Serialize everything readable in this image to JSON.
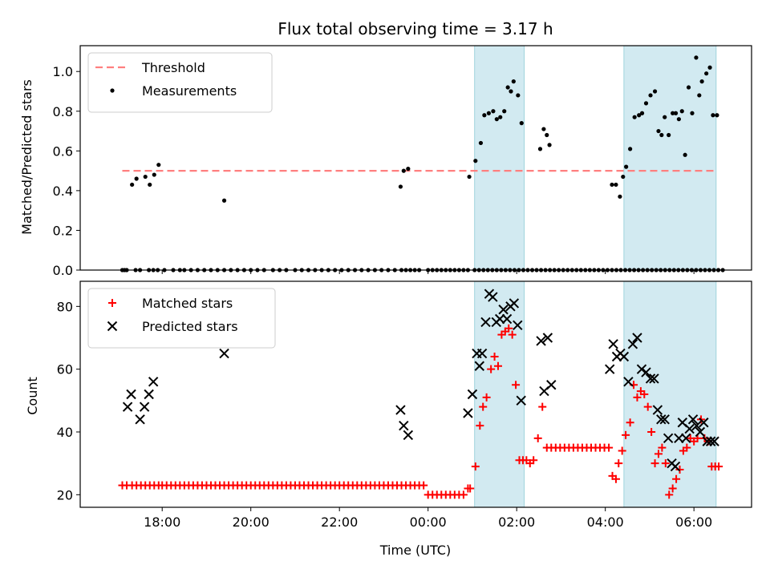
{
  "chart_data": [
    {
      "type": "scatter",
      "title": "Flux total observing time = 3.17 h",
      "xlabel": "",
      "ylabel": "Matched/Predicted stars",
      "x_axis": "time (hours relative to 00:00 UTC of day 2)",
      "xlim": [
        -7.85,
        7.3
      ],
      "ylim": [
        0.0,
        1.13
      ],
      "yticks": [
        "0.0",
        "0.2",
        "0.4",
        "0.6",
        "0.8",
        "1.0"
      ],
      "xtick_labels_shown": false,
      "legend_position": "top-left",
      "threshold": {
        "name": "Threshold",
        "value": 0.5,
        "x_range": [
          -6.9,
          6.5
        ],
        "color": "#ff7f7f",
        "style": "dashed"
      },
      "shaded_intervals": [
        [
          1.05,
          2.17
        ],
        [
          4.42,
          6.5
        ]
      ],
      "shade_color": "#add8e6",
      "series": [
        {
          "name": "Measurements",
          "marker": "dot",
          "color": "#000000",
          "x": [
            -6.9,
            -6.85,
            -6.8,
            -6.6,
            -6.5,
            -6.3,
            -6.2,
            -6.1,
            -5.95,
            -5.75,
            -5.6,
            -5.5,
            -5.35,
            -5.2,
            -5.05,
            -4.9,
            -4.75,
            -4.6,
            -4.45,
            -4.3,
            -4.15,
            -4.0,
            -3.85,
            -3.7,
            -3.5,
            -3.35,
            -3.2,
            -3.0,
            -2.85,
            -2.7,
            -2.55,
            -2.4,
            -2.25,
            -2.1,
            -1.95,
            -1.8,
            -1.65,
            -1.5,
            -1.35,
            -1.2,
            -1.05,
            -0.9,
            -0.75,
            -0.6,
            -0.5,
            -0.4,
            -0.3,
            -0.2,
            0.0,
            0.1,
            0.2,
            0.3,
            0.4,
            0.5,
            0.6,
            0.7,
            0.8,
            0.9,
            1.05,
            1.15,
            1.25,
            1.35,
            1.45,
            1.55,
            1.65,
            1.75,
            1.85,
            1.95,
            2.05,
            2.15,
            2.25,
            2.35,
            2.45,
            2.55,
            2.65,
            2.75,
            2.85,
            2.95,
            3.05,
            3.15,
            3.25,
            3.35,
            3.45,
            3.55,
            3.65,
            3.75,
            3.85,
            3.95,
            4.05,
            4.15,
            4.25,
            4.35,
            4.45,
            4.55,
            4.65,
            4.75,
            4.85,
            4.95,
            5.05,
            5.15,
            5.25,
            5.35,
            5.45,
            5.55,
            5.65,
            5.75,
            5.85,
            5.95,
            6.05,
            6.15,
            6.25,
            6.35,
            6.45,
            6.55,
            6.65,
            -6.68,
            -6.58,
            -6.38,
            -6.28,
            -6.18,
            -6.08,
            -4.6,
            -0.62,
            -0.55,
            -0.45,
            0.93,
            1.07,
            1.19,
            1.27,
            1.37,
            1.47,
            1.55,
            1.63,
            1.72,
            1.8,
            1.87,
            1.93,
            2.03,
            2.11,
            2.53,
            2.61,
            2.68,
            2.74,
            4.15,
            4.24,
            4.33,
            4.4,
            4.47,
            4.56,
            4.66,
            4.76,
            4.83,
            4.92,
            5.02,
            5.12,
            5.2,
            5.27,
            5.34,
            5.43,
            5.52,
            5.59,
            5.66,
            5.73,
            5.8,
            5.88,
            5.96,
            6.05,
            6.12,
            6.18,
            6.28,
            6.36,
            6.43,
            6.52
          ],
          "y": [
            0,
            0,
            0,
            0,
            0,
            0,
            0,
            0,
            0,
            0,
            0,
            0,
            0,
            0,
            0,
            0,
            0,
            0,
            0,
            0,
            0,
            0,
            0,
            0,
            0,
            0,
            0,
            0,
            0,
            0,
            0,
            0,
            0,
            0,
            0,
            0,
            0,
            0,
            0,
            0,
            0,
            0,
            0,
            0,
            0,
            0,
            0,
            0,
            0,
            0,
            0,
            0,
            0,
            0,
            0,
            0,
            0,
            0,
            0,
            0,
            0,
            0,
            0,
            0,
            0,
            0,
            0,
            0,
            0,
            0,
            0,
            0,
            0,
            0,
            0,
            0,
            0,
            0,
            0,
            0,
            0,
            0,
            0,
            0,
            0,
            0,
            0,
            0,
            0,
            0,
            0,
            0,
            0,
            0,
            0,
            0,
            0,
            0,
            0,
            0,
            0,
            0,
            0,
            0,
            0,
            0,
            0,
            0,
            0,
            0,
            0,
            0,
            0,
            0,
            0,
            0.43,
            0.46,
            0.47,
            0.43,
            0.48,
            0.53,
            0.35,
            0.42,
            0.5,
            0.51,
            0.47,
            0.55,
            0.64,
            0.78,
            0.79,
            0.8,
            0.76,
            0.77,
            0.8,
            0.92,
            0.9,
            0.95,
            0.88,
            0.74,
            0.61,
            0.71,
            0.68,
            0.63,
            0.43,
            0.43,
            0.37,
            0.47,
            0.52,
            0.61,
            0.77,
            0.78,
            0.79,
            0.84,
            0.88,
            0.9,
            0.7,
            0.68,
            0.77,
            0.68,
            0.79,
            0.79,
            0.76,
            0.8,
            0.58,
            0.92,
            0.79,
            1.07,
            0.88,
            0.95,
            0.99,
            1.02,
            0.78,
            0.78
          ]
        }
      ]
    },
    {
      "type": "scatter",
      "title": "",
      "xlabel": "Time (UTC)",
      "ylabel": "Count",
      "xlim": [
        -7.85,
        7.3
      ],
      "ylim": [
        16,
        88
      ],
      "yticks": [
        "20",
        "40",
        "60",
        "80"
      ],
      "xtick_values": [
        -6,
        -4,
        -2,
        0,
        2,
        4,
        6
      ],
      "xtick_labels": [
        "18:00",
        "20:00",
        "22:00",
        "00:00",
        "02:00",
        "04:00",
        "06:00"
      ],
      "legend_position": "top-left",
      "shaded_intervals": [
        [
          1.05,
          2.17
        ],
        [
          4.42,
          6.5
        ]
      ],
      "shade_color": "#add8e6",
      "series": [
        {
          "name": "Matched stars",
          "marker": "plus",
          "color": "#ff0000",
          "x": [
            -6.9,
            -6.8,
            -6.68,
            -6.58,
            -6.48,
            -6.38,
            -6.28,
            -6.18,
            -6.08,
            -6.0,
            -5.9,
            -5.8,
            -5.7,
            -5.6,
            -5.5,
            -5.4,
            -5.3,
            -5.2,
            -5.1,
            -5.0,
            -4.9,
            -4.8,
            -4.7,
            -4.6,
            -4.5,
            -4.4,
            -4.3,
            -4.2,
            -4.1,
            -4.0,
            -3.9,
            -3.8,
            -3.7,
            -3.6,
            -3.5,
            -3.4,
            -3.3,
            -3.2,
            -3.1,
            -3.0,
            -2.9,
            -2.8,
            -2.7,
            -2.6,
            -2.5,
            -2.4,
            -2.3,
            -2.2,
            -2.1,
            -2.0,
            -1.9,
            -1.8,
            -1.7,
            -1.6,
            -1.5,
            -1.4,
            -1.3,
            -1.2,
            -1.1,
            -1.0,
            -0.9,
            -0.8,
            -0.7,
            -0.6,
            -0.5,
            -0.4,
            -0.3,
            -0.2,
            -0.1,
            0.0,
            0.1,
            0.2,
            0.3,
            0.4,
            0.5,
            0.6,
            0.7,
            0.8,
            0.9,
            0.95,
            1.07,
            1.17,
            1.24,
            1.32,
            1.42,
            1.5,
            1.58,
            1.66,
            1.74,
            1.82,
            1.9,
            1.98,
            2.06,
            2.14,
            2.22,
            2.3,
            2.38,
            2.48,
            2.58,
            2.68,
            2.78,
            2.88,
            2.98,
            3.08,
            3.18,
            3.28,
            3.38,
            3.48,
            3.58,
            3.68,
            3.78,
            3.88,
            3.98,
            4.08,
            4.16,
            4.24,
            4.3,
            4.38,
            4.46,
            4.56,
            4.64,
            4.72,
            4.8,
            4.88,
            4.96,
            5.04,
            5.12,
            5.2,
            5.28,
            5.36,
            5.44,
            5.52,
            5.6,
            5.68,
            5.76,
            5.84,
            5.92,
            6.0,
            6.08,
            6.16,
            6.24,
            6.32,
            6.4,
            6.48,
            6.56
          ],
          "y": [
            23,
            23,
            23,
            23,
            23,
            23,
            23,
            23,
            23,
            23,
            23,
            23,
            23,
            23,
            23,
            23,
            23,
            23,
            23,
            23,
            23,
            23,
            23,
            23,
            23,
            23,
            23,
            23,
            23,
            23,
            23,
            23,
            23,
            23,
            23,
            23,
            23,
            23,
            23,
            23,
            23,
            23,
            23,
            23,
            23,
            23,
            23,
            23,
            23,
            23,
            23,
            23,
            23,
            23,
            23,
            23,
            23,
            23,
            23,
            23,
            23,
            23,
            23,
            23,
            23,
            23,
            23,
            23,
            23,
            20,
            20,
            20,
            20,
            20,
            20,
            20,
            20,
            20,
            22,
            22,
            29,
            42,
            48,
            51,
            60,
            64,
            61,
            71,
            72,
            73,
            71,
            55,
            31,
            31,
            31,
            30,
            31,
            38,
            48,
            35,
            35,
            35,
            35,
            35,
            35,
            35,
            35,
            35,
            35,
            35,
            35,
            35,
            35,
            35,
            26,
            25,
            30,
            34,
            39,
            43,
            55,
            51,
            53,
            52,
            48,
            40,
            30,
            33,
            35,
            30,
            20,
            22,
            25,
            28,
            34,
            35,
            38,
            37,
            38,
            44,
            38,
            37,
            29,
            29,
            29
          ]
        },
        {
          "name": "Predicted stars",
          "marker": "x",
          "color": "#000000",
          "x": [
            -6.78,
            -6.7,
            -6.5,
            -6.4,
            -6.3,
            -6.2,
            -4.6,
            -0.62,
            -0.55,
            -0.45,
            0.9,
            1.0,
            1.1,
            1.16,
            1.22,
            1.3,
            1.38,
            1.46,
            1.54,
            1.62,
            1.7,
            1.78,
            1.86,
            1.94,
            2.02,
            2.1,
            2.55,
            2.62,
            2.7,
            2.78,
            4.1,
            4.18,
            4.26,
            4.34,
            4.42,
            4.52,
            4.62,
            4.72,
            4.82,
            4.92,
            5.02,
            5.1,
            5.18,
            5.26,
            5.34,
            5.42,
            5.5,
            5.58,
            5.66,
            5.74,
            5.82,
            5.9,
            5.98,
            6.06,
            6.14,
            6.22,
            6.3,
            6.38,
            6.46
          ],
          "y": [
            48,
            52,
            44,
            48,
            52,
            56,
            65,
            47,
            42,
            39,
            46,
            52,
            65,
            61,
            65,
            75,
            84,
            83,
            75,
            76,
            79,
            76,
            80,
            81,
            74,
            50,
            69,
            53,
            70,
            55,
            60,
            68,
            64,
            65,
            64,
            56,
            68,
            70,
            60,
            59,
            57,
            57,
            47,
            44,
            44,
            38,
            30,
            29,
            38,
            43,
            38,
            41,
            44,
            42,
            40,
            43,
            37,
            37,
            37
          ]
        }
      ]
    }
  ]
}
